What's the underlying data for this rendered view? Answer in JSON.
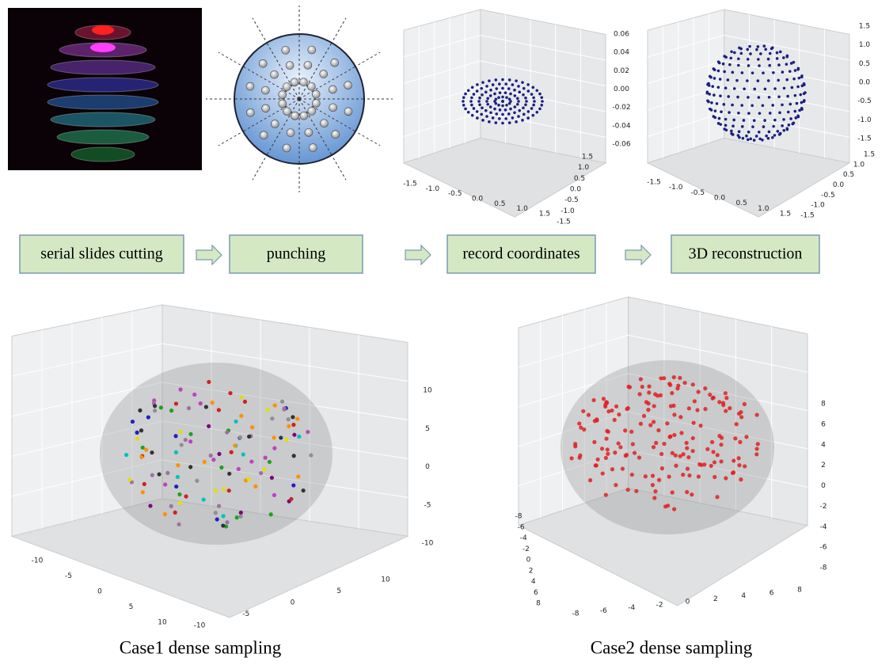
{
  "pipeline": {
    "steps": [
      "serial slides cutting",
      "punching",
      "record coordinates",
      "3D reconstruction"
    ]
  },
  "panels": [
    {
      "zticks": [
        "0.06",
        "0.04",
        "0.02",
        "0.00",
        "-0.02",
        "-0.04",
        "-0.06"
      ],
      "xticks": [
        "-1.5",
        "-1.0",
        "-0.5",
        "0.0",
        "0.5",
        "1.0",
        "1.5"
      ],
      "yticks": [
        "1.5",
        "1.0",
        "0.5",
        "0.0",
        "-0.5",
        "-1.0",
        "-1.5"
      ]
    },
    {
      "zticks": [
        "1.5",
        "1.0",
        "0.5",
        "0.0",
        "-0.5",
        "-1.0",
        "-1.5"
      ],
      "xticks": [
        "-1.5",
        "-1.0",
        "-0.5",
        "0.0",
        "0.5",
        "1.0",
        "1.5"
      ],
      "yticks": [
        "1.5",
        "1.0",
        "0.5",
        "0.0",
        "-0.5",
        "-1.0",
        "-1.5"
      ]
    },
    {
      "zticks": [
        "10",
        "5",
        "0",
        "-5",
        "-10"
      ],
      "xticks": [
        "-10",
        "-5",
        "0",
        "5",
        "10"
      ],
      "yticks": [
        "-10",
        "-5",
        "0",
        "5",
        "10"
      ]
    },
    {
      "zticks": [
        "8",
        "6",
        "4",
        "2",
        "0",
        "-2",
        "-4",
        "-6",
        "-8"
      ],
      "xticks": [
        "-8",
        "-6",
        "-4",
        "-2",
        "0",
        "2",
        "4",
        "6",
        "8"
      ],
      "yticks": [
        "-8",
        "-6",
        "-4",
        "-2",
        "0",
        "2",
        "4",
        "6",
        "8"
      ]
    }
  ],
  "captions": [
    "Case1 dense sampling",
    "Case2 dense sampling"
  ]
}
